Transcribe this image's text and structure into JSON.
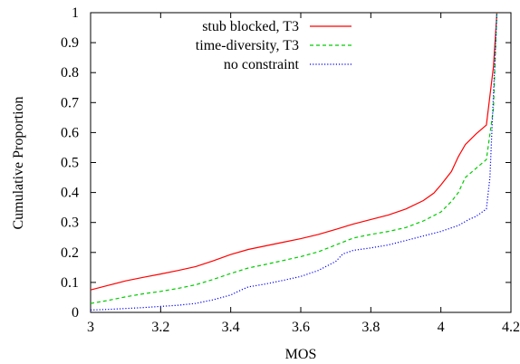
{
  "chart_data": {
    "type": "line",
    "title": "",
    "xlabel": "MOS",
    "ylabel": "Cumulative Proportion",
    "xlim": [
      3,
      4.2
    ],
    "ylim": [
      0,
      1
    ],
    "x_ticks": [
      "3",
      "3.2",
      "3.4",
      "3.6",
      "3.8",
      "4",
      "4.2"
    ],
    "y_ticks": [
      "0",
      "0.1",
      "0.2",
      "0.3",
      "0.4",
      "0.5",
      "0.6",
      "0.7",
      "0.8",
      "0.9",
      "1"
    ],
    "grid": false,
    "legend_position": "top-right",
    "series": [
      {
        "name": "stub blocked, T3",
        "color": "#ff0000",
        "dash": "solid",
        "points": [
          [
            3.0,
            0.075
          ],
          [
            3.05,
            0.09
          ],
          [
            3.1,
            0.105
          ],
          [
            3.15,
            0.117
          ],
          [
            3.2,
            0.128
          ],
          [
            3.25,
            0.14
          ],
          [
            3.3,
            0.153
          ],
          [
            3.35,
            0.172
          ],
          [
            3.4,
            0.193
          ],
          [
            3.45,
            0.21
          ],
          [
            3.5,
            0.222
          ],
          [
            3.55,
            0.234
          ],
          [
            3.6,
            0.246
          ],
          [
            3.65,
            0.26
          ],
          [
            3.7,
            0.277
          ],
          [
            3.75,
            0.295
          ],
          [
            3.8,
            0.31
          ],
          [
            3.85,
            0.325
          ],
          [
            3.9,
            0.345
          ],
          [
            3.95,
            0.373
          ],
          [
            3.98,
            0.398
          ],
          [
            4.0,
            0.425
          ],
          [
            4.03,
            0.47
          ],
          [
            4.05,
            0.52
          ],
          [
            4.07,
            0.56
          ],
          [
            4.1,
            0.595
          ],
          [
            4.13,
            0.625
          ],
          [
            4.15,
            0.82
          ],
          [
            4.16,
            1.0
          ]
        ]
      },
      {
        "name": "time-diversity, T3",
        "color": "#00cc00",
        "dash": "dashed",
        "points": [
          [
            3.0,
            0.03
          ],
          [
            3.05,
            0.04
          ],
          [
            3.1,
            0.052
          ],
          [
            3.15,
            0.062
          ],
          [
            3.2,
            0.07
          ],
          [
            3.25,
            0.08
          ],
          [
            3.3,
            0.092
          ],
          [
            3.35,
            0.11
          ],
          [
            3.4,
            0.13
          ],
          [
            3.45,
            0.148
          ],
          [
            3.5,
            0.16
          ],
          [
            3.55,
            0.173
          ],
          [
            3.6,
            0.186
          ],
          [
            3.65,
            0.202
          ],
          [
            3.7,
            0.225
          ],
          [
            3.75,
            0.248
          ],
          [
            3.8,
            0.26
          ],
          [
            3.85,
            0.27
          ],
          [
            3.9,
            0.283
          ],
          [
            3.95,
            0.305
          ],
          [
            4.0,
            0.335
          ],
          [
            4.03,
            0.37
          ],
          [
            4.05,
            0.4
          ],
          [
            4.07,
            0.45
          ],
          [
            4.1,
            0.48
          ],
          [
            4.13,
            0.51
          ],
          [
            4.15,
            0.68
          ],
          [
            4.16,
            1.0
          ]
        ]
      },
      {
        "name": "no constraint",
        "color": "#0000ff",
        "dash": "dotted",
        "points": [
          [
            3.0,
            0.008
          ],
          [
            3.05,
            0.01
          ],
          [
            3.1,
            0.013
          ],
          [
            3.15,
            0.016
          ],
          [
            3.2,
            0.02
          ],
          [
            3.25,
            0.024
          ],
          [
            3.3,
            0.03
          ],
          [
            3.35,
            0.042
          ],
          [
            3.4,
            0.058
          ],
          [
            3.43,
            0.075
          ],
          [
            3.45,
            0.085
          ],
          [
            3.5,
            0.095
          ],
          [
            3.55,
            0.107
          ],
          [
            3.6,
            0.12
          ],
          [
            3.65,
            0.14
          ],
          [
            3.7,
            0.17
          ],
          [
            3.72,
            0.195
          ],
          [
            3.75,
            0.207
          ],
          [
            3.8,
            0.215
          ],
          [
            3.85,
            0.225
          ],
          [
            3.9,
            0.24
          ],
          [
            3.95,
            0.255
          ],
          [
            4.0,
            0.27
          ],
          [
            4.05,
            0.29
          ],
          [
            4.08,
            0.31
          ],
          [
            4.1,
            0.32
          ],
          [
            4.13,
            0.345
          ],
          [
            4.14,
            0.45
          ],
          [
            4.16,
            1.0
          ]
        ]
      }
    ]
  }
}
